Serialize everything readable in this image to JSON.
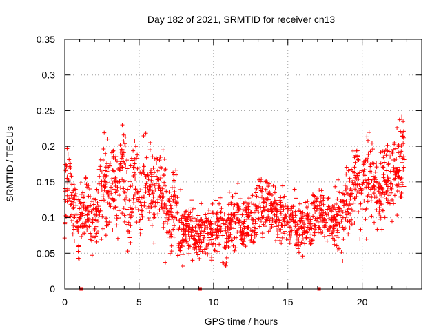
{
  "chart_data": {
    "type": "scatter",
    "title": "Day 182 of 2021, SRMTID for receiver cn13",
    "xlabel": "GPS time / hours",
    "ylabel": "SRMTID / TECUs",
    "xlim": [
      0,
      24
    ],
    "ylim": [
      0,
      0.35
    ],
    "grid": true,
    "marker": "+",
    "x_ticks": [
      0,
      5,
      10,
      15,
      20
    ],
    "x_tick_labels": [
      "0",
      "5",
      "10",
      "15",
      "20"
    ],
    "y_ticks": [
      0,
      0.05,
      0.1,
      0.15,
      0.2,
      0.25,
      0.3,
      0.35
    ],
    "y_tick_labels": [
      "0",
      "0.05",
      "0.1",
      "0.15",
      "0.2",
      "0.25",
      "0.3",
      "0.35"
    ],
    "color": "#ff0000",
    "zero_markers_x": [
      1.1,
      9.1,
      17.1
    ],
    "series": [
      {
        "name": "SRMTID",
        "x_range": [
          0.0,
          22.8
        ],
        "samples_per_hour": 40,
        "profile_hours": [
          0,
          1,
          2,
          3,
          4,
          5,
          6,
          7,
          8,
          9,
          10,
          11,
          12,
          13,
          14,
          15,
          16,
          17,
          18,
          19,
          20,
          21,
          22,
          23
        ],
        "profile_center": [
          0.14,
          0.1,
          0.12,
          0.15,
          0.15,
          0.15,
          0.14,
          0.12,
          0.08,
          0.08,
          0.08,
          0.09,
          0.1,
          0.12,
          0.11,
          0.09,
          0.09,
          0.1,
          0.09,
          0.12,
          0.14,
          0.14,
          0.18,
          0.18
        ],
        "profile_spread": [
          0.06,
          0.05,
          0.05,
          0.08,
          0.07,
          0.07,
          0.06,
          0.06,
          0.04,
          0.04,
          0.04,
          0.04,
          0.04,
          0.04,
          0.04,
          0.04,
          0.04,
          0.04,
          0.04,
          0.05,
          0.06,
          0.05,
          0.06,
          0.06
        ]
      }
    ]
  }
}
